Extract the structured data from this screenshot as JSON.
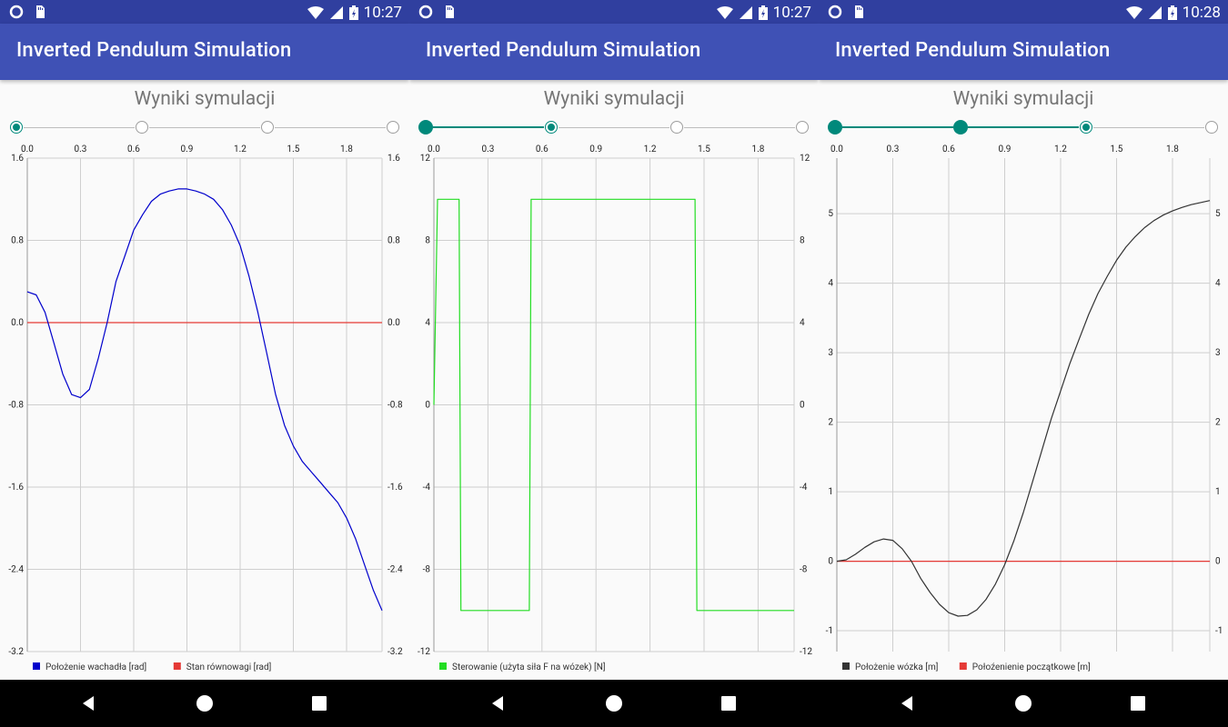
{
  "app": {
    "title": "Inverted Pendulum Simulation",
    "heading": "Wyniki symulacji",
    "accent": "#00897b",
    "toolbar_color": "#3f51b5",
    "status_color": "#303f9f"
  },
  "screens": [
    {
      "time": "10:27",
      "step_index": 0,
      "chart_data": {
        "type": "line",
        "x_ticks": [
          "0.0",
          "0.3",
          "0.6",
          "0.9",
          "1.2",
          "1.5",
          "1.8"
        ],
        "x_range": [
          0,
          2.0
        ],
        "y_ticks": [
          "1.6",
          "0.8",
          "0.0",
          "-0.8",
          "-1.6",
          "-2.4",
          "-3.2"
        ],
        "y_range": [
          -3.2,
          1.6
        ],
        "grid": true,
        "legend_position": "bottom-left",
        "series": [
          {
            "name": "Położenie wachadła [rad]",
            "color": "#0000cc",
            "x": [
              0.0,
              0.05,
              0.1,
              0.15,
              0.2,
              0.25,
              0.3,
              0.35,
              0.4,
              0.45,
              0.5,
              0.55,
              0.6,
              0.65,
              0.7,
              0.75,
              0.8,
              0.85,
              0.9,
              0.95,
              1.0,
              1.05,
              1.1,
              1.15,
              1.2,
              1.25,
              1.3,
              1.35,
              1.4,
              1.45,
              1.5,
              1.55,
              1.6,
              1.65,
              1.7,
              1.75,
              1.8,
              1.85,
              1.9,
              1.95,
              2.0
            ],
            "y": [
              0.3,
              0.27,
              0.1,
              -0.2,
              -0.5,
              -0.7,
              -0.73,
              -0.65,
              -0.35,
              0.0,
              0.4,
              0.65,
              0.9,
              1.05,
              1.18,
              1.25,
              1.28,
              1.3,
              1.3,
              1.28,
              1.25,
              1.2,
              1.1,
              0.95,
              0.75,
              0.45,
              0.1,
              -0.3,
              -0.7,
              -1.0,
              -1.2,
              -1.35,
              -1.45,
              -1.55,
              -1.65,
              -1.75,
              -1.9,
              -2.1,
              -2.35,
              -2.6,
              -2.8
            ]
          },
          {
            "name": "Stan równowagi [rad]",
            "color": "#e53935",
            "x": [
              0.0,
              2.0
            ],
            "y": [
              0.0,
              0.0
            ]
          }
        ]
      }
    },
    {
      "time": "10:27",
      "step_index": 1,
      "chart_data": {
        "type": "line",
        "x_ticks": [
          "0.0",
          "0.3",
          "0.6",
          "0.9",
          "1.2",
          "1.5",
          "1.8"
        ],
        "x_range": [
          0,
          2.0
        ],
        "y_ticks": [
          "12",
          "8",
          "4",
          "0",
          "-4",
          "-8",
          "-12"
        ],
        "y_range": [
          -12,
          12
        ],
        "grid": true,
        "legend_position": "bottom-left",
        "series": [
          {
            "name": "Sterowanie (użyta siła F na wózek) [N]",
            "color": "#22dd22",
            "x": [
              0.0,
              0.02,
              0.14,
              0.15,
              0.53,
              0.54,
              1.45,
              1.46,
              2.0
            ],
            "y": [
              0,
              10,
              10,
              -10,
              -10,
              10,
              10,
              -10,
              -10
            ]
          }
        ]
      }
    },
    {
      "time": "10:28",
      "step_index": 2,
      "chart_data": {
        "type": "line",
        "x_ticks": [
          "0.0",
          "0.3",
          "0.6",
          "0.9",
          "1.2",
          "1.5",
          "1.8"
        ],
        "x_range": [
          0,
          2.0
        ],
        "y_ticks": [
          "5",
          "4",
          "3",
          "2",
          "1",
          "0",
          "-1"
        ],
        "y_range": [
          -1.3,
          5.8
        ],
        "grid": true,
        "legend_position": "bottom-left",
        "series": [
          {
            "name": "Położenie wózka [m]",
            "color": "#333333",
            "x": [
              0.0,
              0.05,
              0.1,
              0.15,
              0.2,
              0.25,
              0.3,
              0.35,
              0.4,
              0.45,
              0.5,
              0.55,
              0.6,
              0.65,
              0.7,
              0.75,
              0.8,
              0.85,
              0.9,
              0.95,
              1.0,
              1.05,
              1.1,
              1.15,
              1.2,
              1.25,
              1.3,
              1.35,
              1.4,
              1.45,
              1.5,
              1.55,
              1.6,
              1.65,
              1.7,
              1.75,
              1.8,
              1.85,
              1.9,
              1.95,
              2.0
            ],
            "y": [
              0.0,
              0.02,
              0.1,
              0.2,
              0.28,
              0.32,
              0.3,
              0.18,
              0.0,
              -0.25,
              -0.45,
              -0.62,
              -0.74,
              -0.79,
              -0.78,
              -0.7,
              -0.55,
              -0.33,
              -0.05,
              0.3,
              0.7,
              1.15,
              1.6,
              2.05,
              2.45,
              2.85,
              3.2,
              3.55,
              3.85,
              4.1,
              4.33,
              4.52,
              4.67,
              4.8,
              4.9,
              4.98,
              5.04,
              5.09,
              5.13,
              5.16,
              5.19
            ]
          },
          {
            "name": "Połoźenienie początkowe [m]",
            "color": "#e53935",
            "x": [
              0.0,
              2.0
            ],
            "y": [
              0.0,
              0.0
            ]
          }
        ]
      }
    }
  ]
}
